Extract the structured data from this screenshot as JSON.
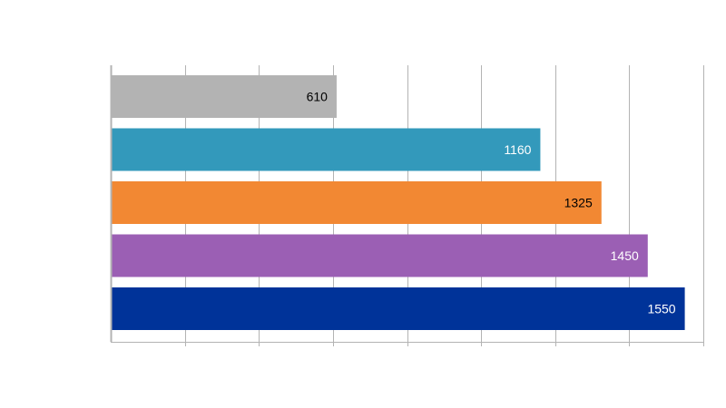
{
  "chart_data": {
    "type": "bar",
    "orientation": "horizontal",
    "categories": [
      "",
      "",
      "",
      "",
      ""
    ],
    "values": [
      610,
      1160,
      1325,
      1450,
      1550
    ],
    "value_labels": [
      "610",
      "1160",
      "1325",
      "1450",
      "1550"
    ],
    "bar_colors": [
      "#b3b3b3",
      "#3399bb",
      "#f28833",
      "#9b5fb4",
      "#003399"
    ],
    "label_colors": [
      "#000000",
      "#ffffff",
      "#000000",
      "#ffffff",
      "#ffffff"
    ],
    "xlim": [
      0,
      1600
    ],
    "x_gridline_step": 200,
    "grid": true,
    "title": "",
    "xlabel": "",
    "ylabel": ""
  }
}
